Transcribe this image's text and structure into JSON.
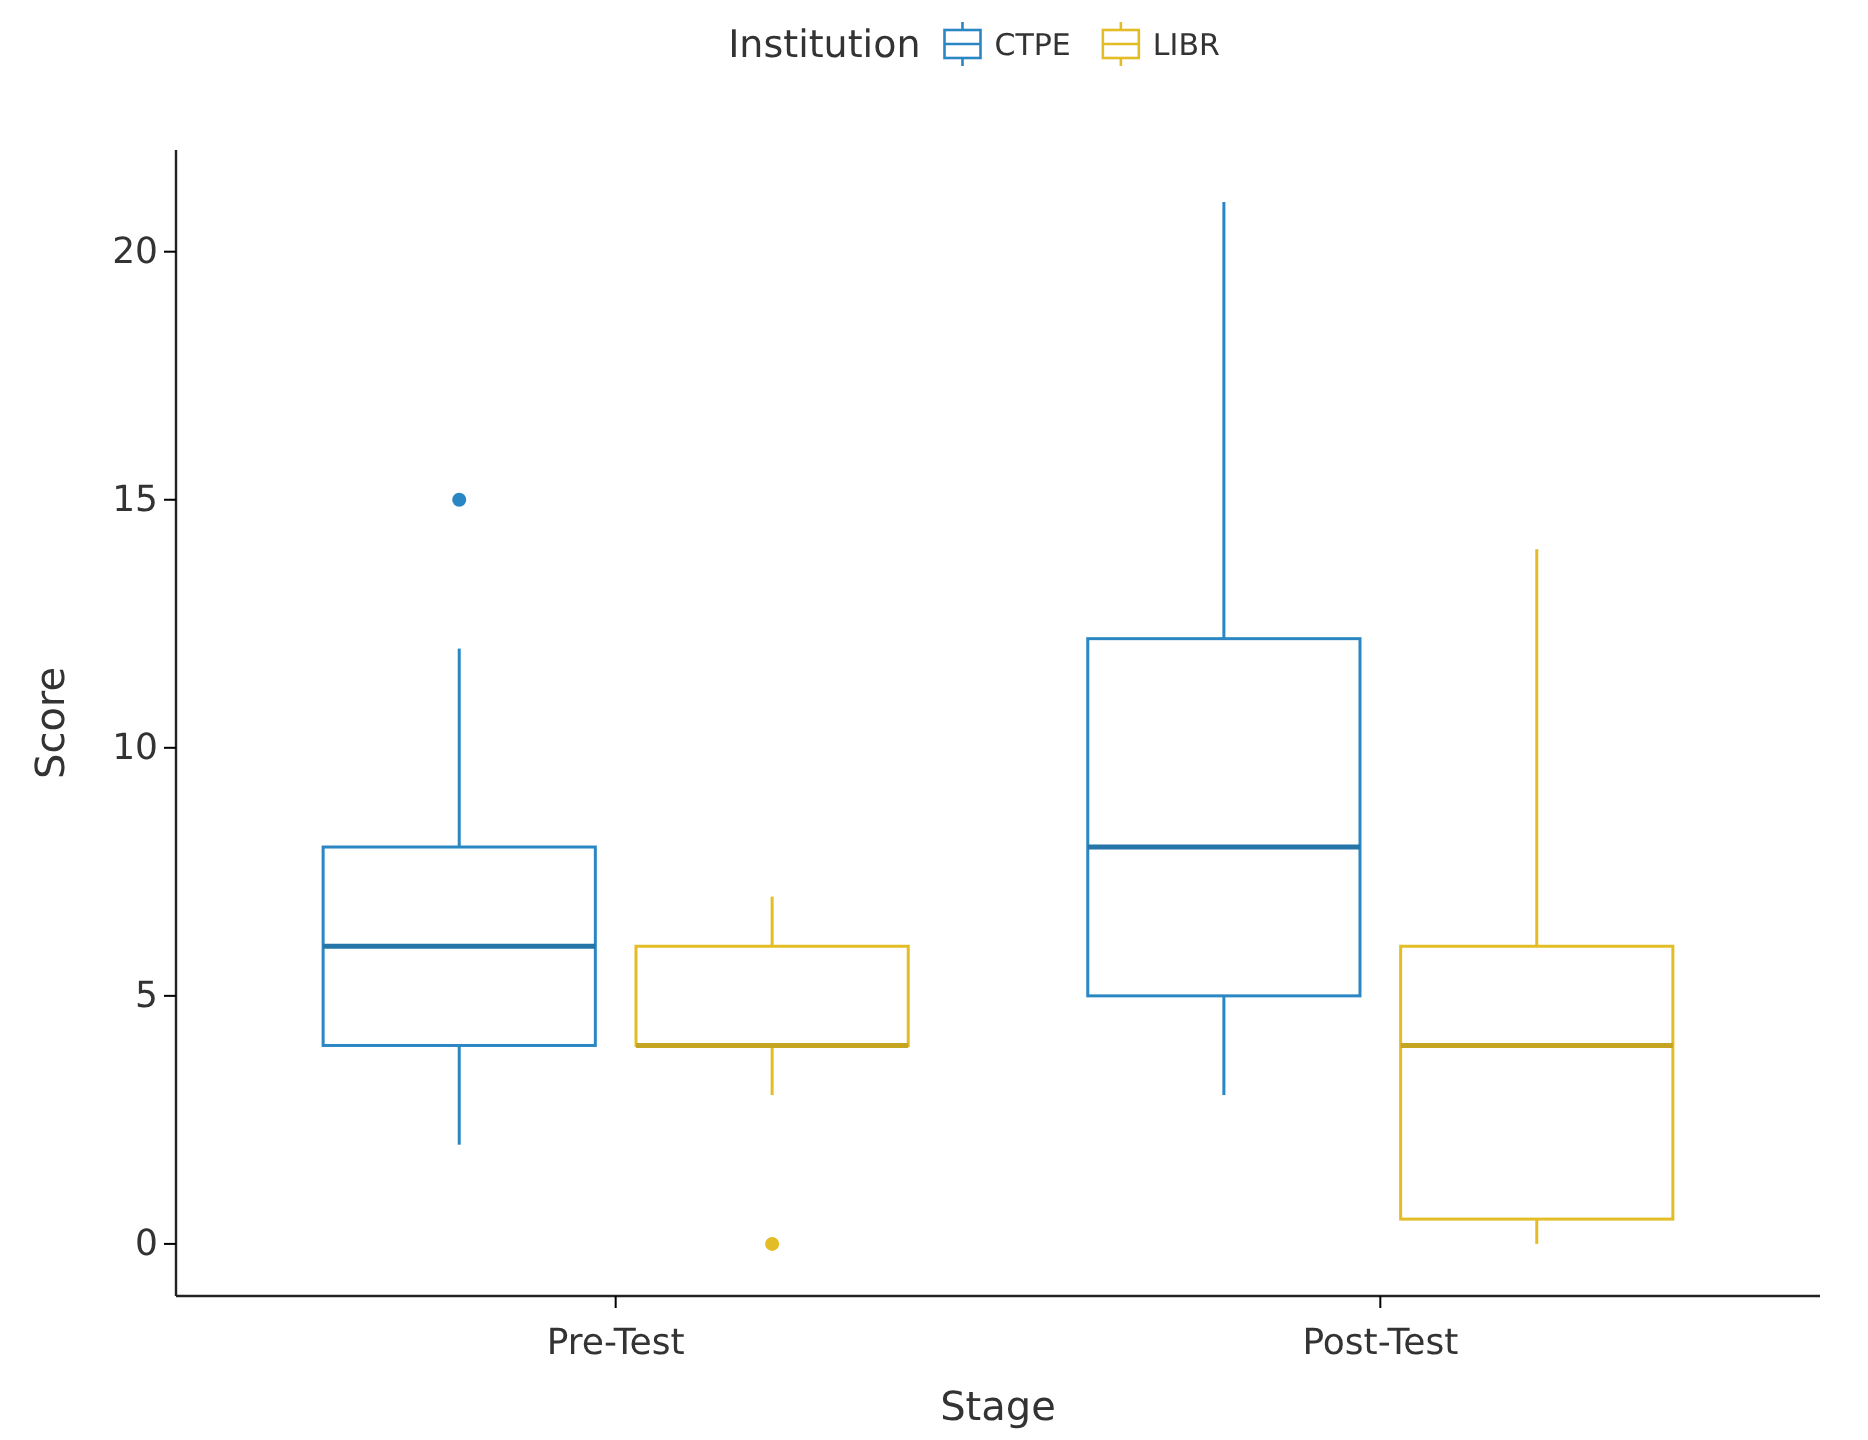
{
  "chart_data": {
    "type": "box",
    "xlabel": "Stage",
    "ylabel": "Score",
    "legend_title": "Institution",
    "legend": "top",
    "grid": false,
    "categories": [
      "Pre-Test",
      "Post-Test"
    ],
    "ylim": [
      -1.05,
      22.05
    ],
    "yticks": [
      0,
      5,
      10,
      15,
      20
    ],
    "series": [
      {
        "name": "CTPE",
        "color": "#2b87c3",
        "boxes": [
          {
            "low": 2,
            "q1": 4,
            "median": 6,
            "q3": 8,
            "high": 12,
            "outliers": [
              15
            ]
          },
          {
            "low": 3,
            "q1": 5,
            "median": 8,
            "q3": 12.2,
            "high": 21
          }
        ]
      },
      {
        "name": "LIBR",
        "color": "#e3bd26",
        "boxes": [
          {
            "low": 3,
            "q1": 4,
            "median": 4,
            "q3": 6,
            "high": 7,
            "outliers": [
              0
            ]
          },
          {
            "low": 0,
            "q1": 0.5,
            "median": 4,
            "q3": 6,
            "high": 14
          }
        ]
      }
    ]
  }
}
